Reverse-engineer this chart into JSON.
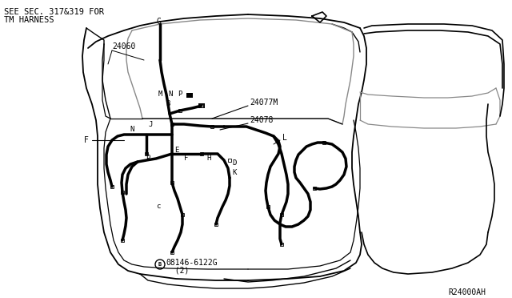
{
  "bg_color": "#ffffff",
  "line_color": "#000000",
  "text_color": "#000000",
  "top_left_text_line1": "SEE SEC. 317&319 FOR",
  "top_left_text_line2": "TM HARNESS",
  "label_24060": "24060",
  "label_24077M": "24077M",
  "label_24078": "24078",
  "label_ref": "R24000AH",
  "figsize": [
    6.4,
    3.72
  ],
  "dpi": 100
}
